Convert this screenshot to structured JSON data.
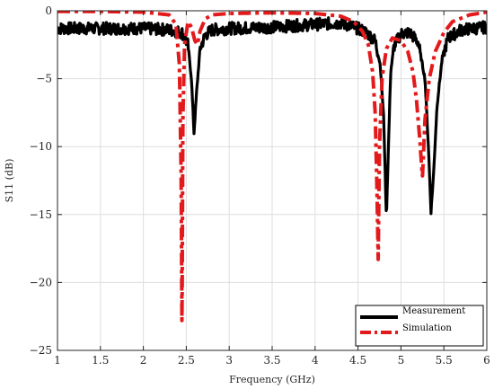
{
  "chart_data": {
    "type": "line",
    "title": "",
    "xlabel": "Frequency (GHz)",
    "ylabel": "S11 (dB)",
    "xlim": [
      1,
      6
    ],
    "ylim": [
      -25,
      0
    ],
    "xticks": [
      1,
      1.5,
      2,
      2.5,
      3,
      3.5,
      4,
      4.5,
      5,
      5.5,
      6
    ],
    "xtick_labels": [
      "1",
      "1.5",
      "2",
      "2.5",
      "3",
      "3.5",
      "4",
      "4.5",
      "5",
      "5.5",
      "6"
    ],
    "yticks": [
      0,
      -5,
      -10,
      -15,
      -20,
      -25
    ],
    "ytick_labels": [
      "0",
      "−5",
      "−10",
      "−15",
      "−20",
      "−25"
    ],
    "grid": true,
    "legend_position": "bottom-right",
    "series": [
      {
        "name": "Measurement",
        "color": "#000000",
        "style": "solid",
        "x": [
          1.0,
          1.5,
          2.0,
          2.3,
          2.45,
          2.52,
          2.56,
          2.59,
          2.62,
          2.66,
          2.72,
          2.8,
          3.0,
          3.5,
          4.0,
          4.3,
          4.5,
          4.6,
          4.7,
          4.76,
          4.8,
          4.83,
          4.85,
          4.88,
          4.92,
          5.0,
          5.1,
          5.2,
          5.28,
          5.32,
          5.35,
          5.38,
          5.42,
          5.48,
          5.55,
          5.7,
          6.0
        ],
        "y": [
          -1.3,
          -1.3,
          -1.3,
          -1.4,
          -1.6,
          -2.5,
          -5.0,
          -9.0,
          -6.0,
          -2.8,
          -1.8,
          -1.4,
          -1.3,
          -1.2,
          -1.0,
          -0.9,
          -1.3,
          -1.6,
          -2.2,
          -4.0,
          -8.0,
          -15.3,
          -11.0,
          -4.5,
          -2.6,
          -1.7,
          -1.6,
          -2.3,
          -5.0,
          -10.0,
          -14.8,
          -12.0,
          -7.0,
          -3.5,
          -2.0,
          -1.4,
          -1.2
        ]
      },
      {
        "name": "Simulation",
        "color": "#e31a1c",
        "style": "dash-dot",
        "x": [
          1.0,
          1.5,
          2.0,
          2.3,
          2.38,
          2.42,
          2.44,
          2.45,
          2.46,
          2.48,
          2.52,
          2.56,
          2.6,
          2.63,
          2.66,
          2.72,
          2.8,
          3.0,
          3.5,
          4.0,
          4.3,
          4.45,
          4.55,
          4.62,
          4.67,
          4.7,
          4.72,
          4.735,
          4.75,
          4.78,
          4.83,
          4.9,
          5.0,
          5.08,
          5.14,
          5.18,
          5.22,
          5.25,
          5.28,
          5.33,
          5.4,
          5.5,
          5.6,
          5.8,
          6.0
        ],
        "y": [
          -0.05,
          -0.05,
          -0.1,
          -0.3,
          -1.0,
          -4.0,
          -12.0,
          -24.0,
          -8.0,
          -2.5,
          -0.8,
          -1.2,
          -2.2,
          -2.5,
          -1.5,
          -0.6,
          -0.3,
          -0.2,
          -0.15,
          -0.2,
          -0.4,
          -0.8,
          -1.5,
          -2.5,
          -4.5,
          -7.5,
          -13.0,
          -18.3,
          -10.0,
          -5.0,
          -2.8,
          -2.0,
          -2.2,
          -3.0,
          -4.5,
          -6.5,
          -9.5,
          -12.3,
          -8.0,
          -5.0,
          -3.0,
          -1.6,
          -0.8,
          -0.3,
          -0.1
        ]
      }
    ]
  }
}
